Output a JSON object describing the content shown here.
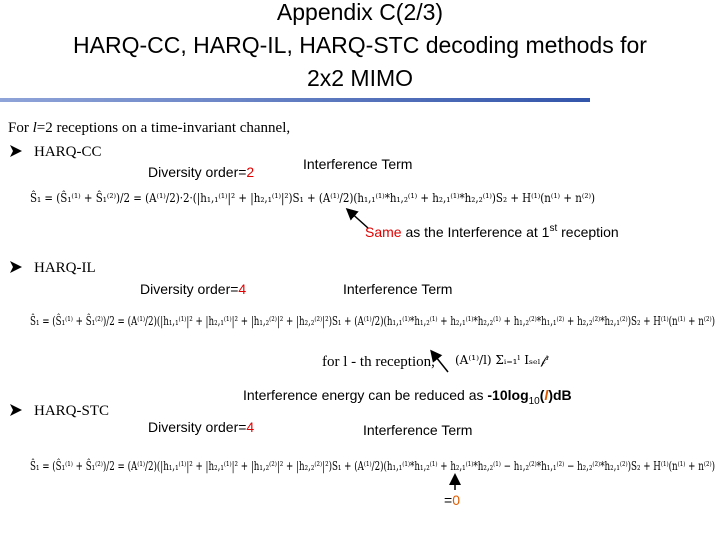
{
  "title": [
    "Appendix C(2/3)",
    "HARQ-CC, HARQ-IL, HARQ-STC decoding methods for",
    "2x2 MIMO"
  ],
  "intro": {
    "prefix": "For ",
    "variable": "l",
    "suffix": "=2 receptions on a time-invariant channel,"
  },
  "sections": [
    {
      "bullet": "HARQ-CC",
      "diversity": {
        "label": "Diversity order=",
        "value": "2"
      },
      "interference": "Interference Term",
      "equation": "Ŝ₁ = (Ŝ₁⁽¹⁾ + Ŝ₁⁽²⁾)/2 = (A⁽¹⁾/2)·2·(|h₁,₁⁽¹⁾|² + |h₂,₁⁽¹⁾|²)S₁ + (A⁽¹⁾/2)(h₁,₁⁽¹⁾*h₁,₂⁽¹⁾ + h₂,₁⁽¹⁾*h₂,₂⁽¹⁾)S₂ + H⁽¹⁾(n⁽¹⁾ + n⁽²⁾)",
      "note": {
        "highlight": "Same",
        "text": " as the Interference at 1",
        "superscript": "st",
        "tail": " reception"
      }
    },
    {
      "bullet": "HARQ-IL",
      "diversity": {
        "label": "Diversity order=",
        "value": "4"
      },
      "interference": "Interference Term",
      "equation": "Ŝ₁ = (Ŝ₁⁽¹⁾ + Ŝ₁⁽²⁾)/2 = (A⁽¹⁾/2)(|h₁,₁⁽¹⁾|² + |h₂,₁⁽¹⁾|² + |h₁,₂⁽²⁾|² + |h₂,₂⁽²⁾|²)S₁ + (A⁽¹⁾/2)(h₁,₁⁽¹⁾*h₁,₂⁽¹⁾ + h₂,₁⁽¹⁾*h₂,₂⁽¹⁾ + h₁,₂⁽²⁾*h₁,₁⁽²⁾ + h₂,₂⁽²⁾*h₂,₁⁽²⁾)S₂ + H⁽¹⁾(n⁽¹⁾ + n⁽²⁾)",
      "annotation": "for l - th reception,",
      "annotation_formula": "(A⁽¹⁾/l) Σᵢ₌₁ˡ Iₛₑₗ𝒻ⁱ",
      "energy_note": {
        "text": "Interference energy can be reduced as ",
        "prefix": "-10log",
        "subscript": "10",
        "open": "(",
        "variable": "l",
        "close": ")dB"
      }
    },
    {
      "bullet": "HARQ-STC",
      "diversity": {
        "label": "Diversity order=",
        "value": "4"
      },
      "interference": "Interference Term",
      "equation": "Ŝ₁ = (Ŝ₁⁽¹⁾ + Ŝ₁⁽²⁾)/2 = (A⁽¹⁾/2)(|h₁,₁⁽¹⁾|² + |h₂,₁⁽¹⁾|² + |h₁,₂⁽²⁾|² + |h₂,₂⁽²⁾|²)S₁ + (A⁽¹⁾/2)(h₁,₁⁽¹⁾*h₁,₂⁽¹⁾ + h₂,₁⁽¹⁾*h₂,₂⁽¹⁾ − h₁,₂⁽²⁾*h₁,₁⁽²⁾ − h₂,₂⁽²⁾*h₂,₁⁽²⁾)S₂ + H⁽¹⁾(n⁽¹⁾ + n⁽²⁾)",
      "result": {
        "sign": "=",
        "value": "0"
      }
    }
  ]
}
